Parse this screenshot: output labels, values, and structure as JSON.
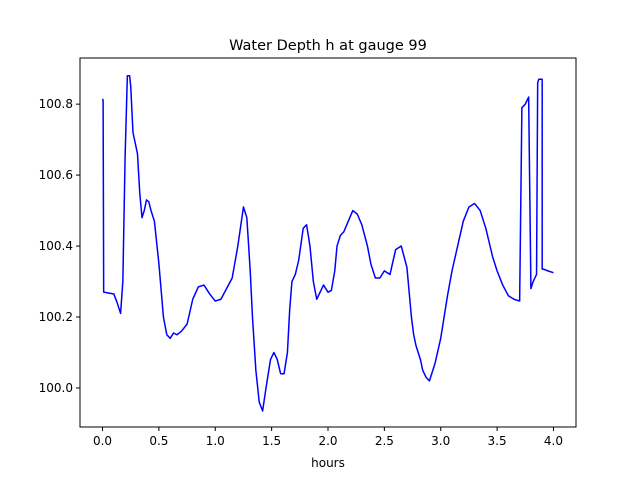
{
  "chart_data": {
    "type": "line",
    "title": "Water Depth h at gauge 99",
    "xlabel": "hours",
    "ylabel": "",
    "xlim": [
      -0.2,
      4.2
    ],
    "ylim": [
      99.89,
      100.93
    ],
    "xticks": [
      0.0,
      0.5,
      1.0,
      1.5,
      2.0,
      2.5,
      3.0,
      3.5,
      4.0
    ],
    "xtick_labels": [
      "0.0",
      "0.5",
      "1.0",
      "1.5",
      "2.0",
      "2.5",
      "3.0",
      "3.5",
      "4.0"
    ],
    "yticks": [
      100.0,
      100.2,
      100.4,
      100.6,
      100.8
    ],
    "ytick_labels": [
      "100.0",
      "100.2",
      "100.4",
      "100.6",
      "100.8"
    ],
    "grid": false,
    "legend": "none",
    "series": [
      {
        "name": "",
        "color": "#0000ff",
        "x": [
          0.0,
          0.005,
          0.01,
          0.1,
          0.13,
          0.16,
          0.18,
          0.2,
          0.22,
          0.24,
          0.25,
          0.27,
          0.29,
          0.31,
          0.33,
          0.35,
          0.37,
          0.39,
          0.41,
          0.43,
          0.46,
          0.5,
          0.54,
          0.57,
          0.6,
          0.63,
          0.66,
          0.7,
          0.75,
          0.8,
          0.85,
          0.9,
          0.95,
          1.0,
          1.05,
          1.1,
          1.15,
          1.2,
          1.25,
          1.28,
          1.31,
          1.33,
          1.36,
          1.39,
          1.42,
          1.45,
          1.49,
          1.52,
          1.55,
          1.58,
          1.61,
          1.64,
          1.66,
          1.68,
          1.71,
          1.74,
          1.78,
          1.81,
          1.84,
          1.87,
          1.9,
          1.93,
          1.96,
          2.0,
          2.03,
          2.06,
          2.08,
          2.11,
          2.14,
          2.18,
          2.22,
          2.26,
          2.3,
          2.35,
          2.38,
          2.42,
          2.46,
          2.5,
          2.55,
          2.6,
          2.65,
          2.7,
          2.74,
          2.76,
          2.78,
          2.8,
          2.82,
          2.84,
          2.87,
          2.9,
          2.95,
          3.0,
          3.03,
          3.06,
          3.1,
          3.15,
          3.2,
          3.25,
          3.3,
          3.35,
          3.4,
          3.43,
          3.46,
          3.5,
          3.55,
          3.6,
          3.65,
          3.7,
          3.72,
          3.72,
          3.75,
          3.78,
          3.8,
          3.8,
          3.82,
          3.85,
          3.86,
          3.86,
          3.87,
          3.88,
          3.9,
          3.9,
          3.91,
          3.91,
          3.95,
          4.0
        ],
        "y": [
          100.815,
          100.81,
          100.27,
          100.265,
          100.24,
          100.21,
          100.3,
          100.65,
          100.88,
          100.88,
          100.85,
          100.72,
          100.69,
          100.66,
          100.55,
          100.48,
          100.5,
          100.53,
          100.525,
          100.5,
          100.47,
          100.35,
          100.2,
          100.15,
          100.14,
          100.155,
          100.15,
          100.16,
          100.18,
          100.25,
          100.285,
          100.29,
          100.265,
          100.245,
          100.25,
          100.28,
          100.31,
          100.4,
          100.51,
          100.48,
          100.33,
          100.2,
          100.05,
          99.96,
          99.935,
          100.0,
          100.08,
          100.1,
          100.08,
          100.04,
          100.04,
          100.1,
          100.22,
          100.3,
          100.32,
          100.36,
          100.45,
          100.46,
          100.4,
          100.3,
          100.25,
          100.27,
          100.29,
          100.27,
          100.275,
          100.33,
          100.4,
          100.43,
          100.44,
          100.47,
          100.5,
          100.49,
          100.46,
          100.4,
          100.35,
          100.31,
          100.31,
          100.33,
          100.32,
          100.39,
          100.4,
          100.34,
          100.2,
          100.15,
          100.12,
          100.1,
          100.08,
          100.05,
          100.03,
          100.02,
          100.07,
          100.14,
          100.2,
          100.26,
          100.33,
          100.4,
          100.47,
          100.51,
          100.52,
          100.5,
          100.45,
          100.41,
          100.37,
          100.33,
          100.29,
          100.26,
          100.25,
          100.245,
          100.79,
          100.79,
          100.8,
          100.82,
          100.28,
          100.28,
          100.3,
          100.32,
          100.86,
          100.86,
          100.87,
          100.87,
          100.87,
          100.335,
          100.335,
          100.335,
          100.33,
          100.325
        ]
      }
    ]
  }
}
